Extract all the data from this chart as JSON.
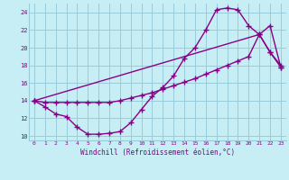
{
  "title": "",
  "xlabel": "Windchill (Refroidissement éolien,°C)",
  "ylabel": "",
  "xlim": [
    -0.5,
    23.5
  ],
  "ylim": [
    9.5,
    25.0
  ],
  "yticks": [
    10,
    12,
    14,
    16,
    18,
    20,
    22,
    24
  ],
  "xticks": [
    0,
    1,
    2,
    3,
    4,
    5,
    6,
    7,
    8,
    9,
    10,
    11,
    12,
    13,
    14,
    15,
    16,
    17,
    18,
    19,
    20,
    21,
    22,
    23
  ],
  "bg_color": "#c8eef5",
  "grid_color": "#99ccd9",
  "line_color": "#880088",
  "line1_x": [
    0,
    1,
    2,
    3,
    4,
    5,
    6,
    7,
    8,
    9,
    10,
    11,
    12,
    13,
    14,
    15,
    16,
    17,
    18,
    19,
    20,
    21,
    22,
    23
  ],
  "line1_y": [
    14.0,
    13.3,
    12.5,
    12.2,
    11.0,
    10.2,
    10.2,
    10.3,
    10.5,
    11.5,
    13.0,
    14.5,
    15.5,
    16.8,
    18.8,
    20.0,
    22.0,
    24.3,
    24.5,
    24.3,
    22.5,
    21.5,
    19.5,
    18.0
  ],
  "line2_x": [
    0,
    1,
    2,
    3,
    4,
    5,
    6,
    7,
    8,
    9,
    10,
    11,
    12,
    13,
    14,
    15,
    16,
    17,
    18,
    19,
    20,
    21,
    22,
    23
  ],
  "line2_y": [
    14.0,
    13.8,
    13.8,
    13.8,
    13.8,
    13.8,
    13.8,
    13.8,
    14.0,
    14.3,
    14.6,
    14.9,
    15.3,
    15.7,
    16.1,
    16.5,
    17.0,
    17.5,
    18.0,
    18.5,
    19.0,
    21.5,
    22.5,
    17.8
  ],
  "line3_x": [
    0,
    21,
    22,
    23
  ],
  "line3_y": [
    14.0,
    21.5,
    19.5,
    17.8
  ],
  "marker": "D",
  "markersize": 2.5,
  "linewidth": 1.0
}
